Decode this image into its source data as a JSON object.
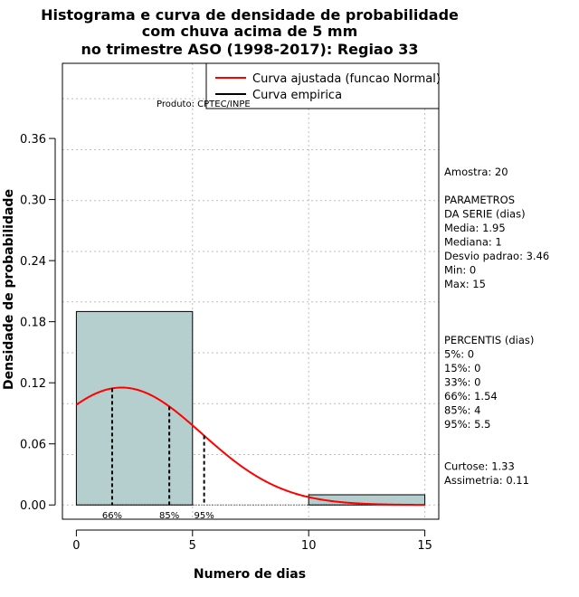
{
  "chart_data": {
    "type": "bar",
    "title": [
      "Histograma e curva de densidade de probabilidade",
      "com chuva acima de 5 mm",
      "no trimestre ASO (1998-2017): Regiao 33"
    ],
    "xlabel": "Numero de dias",
    "ylabel": "Densidade de probabilidade",
    "xlim": [
      -0.6,
      15.6
    ],
    "ylim": [
      -0.014,
      0.4338
    ],
    "x_ticks": [
      0,
      5,
      10,
      15
    ],
    "y_ticks": [
      0.0,
      0.06,
      0.12,
      0.18,
      0.24,
      0.3,
      0.36
    ],
    "y_tick_labels": [
      "0.00",
      "0.06",
      "0.12",
      "0.18",
      "0.24",
      "0.30",
      "0.36"
    ],
    "x_grid": [
      -0.6,
      5,
      10,
      15
    ],
    "y_grid": [
      0.0,
      0.0495,
      0.0995,
      0.1495,
      0.1995,
      0.249,
      0.299,
      0.349,
      0.399
    ],
    "histogram": {
      "color": "#b5cece",
      "bins": [
        {
          "x0": 0,
          "x1": 5,
          "density": 0.19
        },
        {
          "x0": 5,
          "x1": 10,
          "density": 0.0
        },
        {
          "x0": 10,
          "x1": 15,
          "density": 0.01
        }
      ]
    },
    "fitted_curve": {
      "name": "Curva ajustada (funcao Normal)",
      "color": "#ff0000",
      "distribution": "normal",
      "mean": 1.95,
      "sd": 3.46,
      "x_range": [
        0,
        15
      ]
    },
    "empirical_curve": {
      "name": "Curva empirica",
      "color": "#000000"
    },
    "percentile_lines": [
      {
        "x": 1.54,
        "label": "66%"
      },
      {
        "x": 4,
        "label": "85%"
      },
      {
        "x": 5.5,
        "label": "95%"
      }
    ],
    "legend": {
      "position": "top-right",
      "entries": [
        {
          "label": "Curva ajustada (funcao Normal)",
          "color": "#ff0000"
        },
        {
          "label": "Curva empirica",
          "color": "#000000"
        }
      ]
    },
    "annotation": "Produto: CPTEC/INPE",
    "side_text": [
      "Amostra: 20",
      "",
      " PARAMETROS",
      "DA SERIE (dias)",
      "   Media: 1.95",
      "   Mediana: 1",
      "   Desvio padrao: 3.46",
      "   Min: 0",
      "   Max: 15",
      "",
      "",
      "",
      "PERCENTIS (dias)",
      "   5%: 0",
      "   15%: 0",
      "   33%: 0",
      "   66%: 1.54",
      "   85%: 4",
      "   95%: 5.5",
      "",
      "",
      "    Curtose: 1.33",
      "Assimetria: 0.11"
    ],
    "grid": true
  }
}
